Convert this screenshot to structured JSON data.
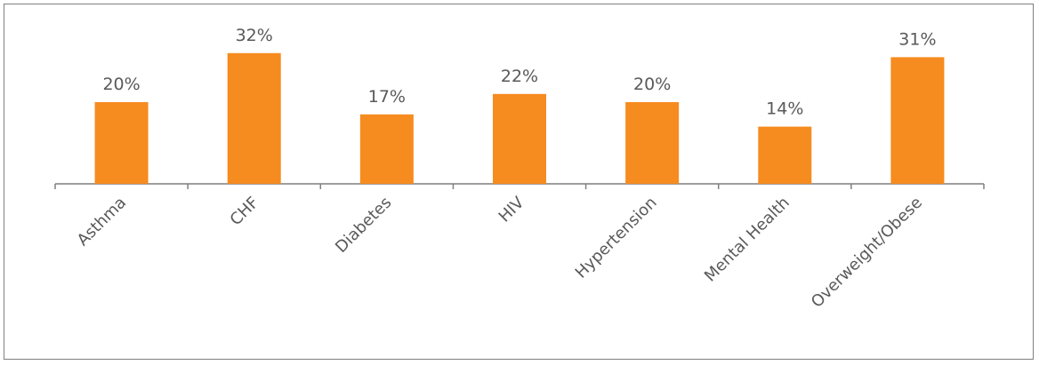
{
  "chart_data": {
    "type": "bar",
    "title": "",
    "xlabel": "",
    "ylabel": "",
    "ylim": [
      0,
      40
    ],
    "grid": false,
    "legend": "none",
    "categories": [
      "Asthma",
      "CHF",
      "Diabetes",
      "HIV",
      "Hypertension",
      "Mental Health",
      "Overweight/Obese"
    ],
    "values": [
      20,
      32,
      17,
      22,
      20,
      14,
      31
    ],
    "value_labels": [
      "20%",
      "32%",
      "17%",
      "22%",
      "20%",
      "14%",
      "31%"
    ],
    "colors": {
      "bar": "#F68B1F",
      "axis": "#7f7f7f",
      "text": "#595959"
    }
  }
}
